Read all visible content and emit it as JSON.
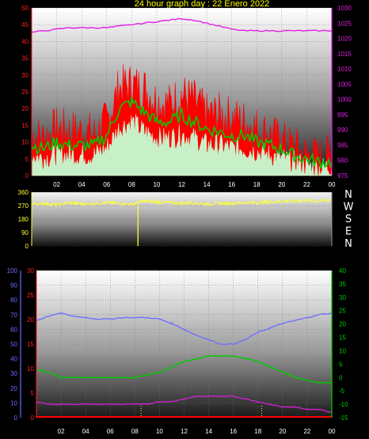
{
  "title": "24 hour graph day : 22 Enero 2022",
  "colors": {
    "background": "#000000",
    "wind_gust": "#ff0000",
    "wind_avg": "#00cc00",
    "wind_min": "#c8f0c8",
    "pressure": "#e020e0",
    "direction": "#ffff33",
    "temperature": "#00cc00",
    "humidity": "#7070ff",
    "dewpoint": "#cc22cc",
    "rain": "#ff0000",
    "left_axis_red": "#ff2020",
    "left_axis_blue": "#6a6aff",
    "time_ticks": "#ffff33"
  },
  "chart_data": [
    {
      "type": "line",
      "name": "wind-pressure",
      "x_ticks": [
        "02",
        "04",
        "06",
        "08",
        "10",
        "12",
        "14",
        "16",
        "18",
        "20",
        "22",
        "00"
      ],
      "y_left_ticks": [
        "0",
        "5",
        "10",
        "15",
        "20",
        "25",
        "30",
        "35",
        "40",
        "45",
        "50"
      ],
      "ylim_left": [
        0,
        50
      ],
      "y_right_ticks": [
        "975",
        "980",
        "985",
        "990",
        "995",
        "1000",
        "1005",
        "1010",
        "1015",
        "1020",
        "1025",
        "1030"
      ],
      "ylim_right": [
        975,
        1030
      ],
      "x_hours": [
        0,
        1,
        2,
        3,
        4,
        5,
        6,
        7,
        8,
        9,
        10,
        11,
        12,
        13,
        14,
        15,
        16,
        17,
        18,
        19,
        20,
        21,
        22,
        23,
        24
      ],
      "series": [
        {
          "key": "gust",
          "axis": "left",
          "values": [
            12,
            11,
            14,
            13,
            13,
            12,
            16,
            26,
            27,
            26,
            22,
            21,
            24,
            22,
            18,
            18,
            17,
            16,
            14,
            12,
            10,
            8,
            6,
            5,
            6
          ]
        },
        {
          "key": "avg",
          "axis": "left",
          "values": [
            9,
            8,
            10,
            9,
            9,
            9,
            12,
            20,
            22,
            19,
            16,
            16,
            18,
            16,
            14,
            13,
            12,
            12,
            10,
            9,
            8,
            6,
            5,
            4,
            4
          ]
        },
        {
          "key": "min",
          "axis": "left",
          "values": [
            6,
            5,
            6,
            6,
            6,
            6,
            8,
            14,
            16,
            13,
            11,
            11,
            12,
            11,
            9,
            9,
            8,
            8,
            7,
            6,
            5,
            4,
            3,
            2,
            3
          ]
        },
        {
          "key": "pressure",
          "axis": "right",
          "values": [
            1022,
            1022.5,
            1023,
            1023.5,
            1023.5,
            1023.5,
            1023.5,
            1024,
            1024.5,
            1025,
            1025.5,
            1026,
            1026.5,
            1026,
            1025,
            1024,
            1023,
            1022.5,
            1022.5,
            1022.5,
            1022.5,
            1022.5,
            1022.5,
            1022.5,
            1022.5
          ]
        }
      ]
    },
    {
      "type": "line",
      "name": "wind-direction",
      "x_hours": [
        0,
        1,
        2,
        3,
        4,
        5,
        6,
        7,
        8,
        8.5,
        9,
        10,
        11,
        12,
        13,
        14,
        15,
        16,
        17,
        18,
        19,
        20,
        21,
        22,
        23,
        24
      ],
      "y_ticks": [
        "0",
        "90",
        "180",
        "270",
        "360"
      ],
      "ylim": [
        0,
        360
      ],
      "compass_labels": [
        "N",
        "W",
        "S",
        "E",
        "N"
      ],
      "series": [
        {
          "key": "direction",
          "values": [
            280,
            285,
            275,
            290,
            280,
            285,
            290,
            285,
            280,
            290,
            300,
            295,
            290,
            285,
            290,
            280,
            285,
            285,
            290,
            290,
            295,
            300,
            300,
            305,
            300,
            310
          ]
        }
      ]
    },
    {
      "type": "line",
      "name": "temp-humidity",
      "x_ticks": [
        "02",
        "04",
        "06",
        "08",
        "10",
        "12",
        "14",
        "16",
        "18",
        "20",
        "22",
        "00"
      ],
      "y_left_outer_ticks": [
        "0",
        "10",
        "20",
        "30",
        "40",
        "50",
        "60",
        "70",
        "80",
        "90",
        "100"
      ],
      "ylim_left_outer": [
        0,
        100
      ],
      "y_left_inner_ticks": [
        "0",
        "5",
        "10",
        "15",
        "20",
        "25",
        "30"
      ],
      "ylim_left_inner": [
        0,
        30
      ],
      "y_right_ticks": [
        "-15",
        "-10",
        "-5",
        "0",
        "5",
        "10",
        "15",
        "20",
        "25",
        "30",
        "35",
        "40"
      ],
      "ylim_right": [
        -15,
        40
      ],
      "x_hours": [
        0,
        1,
        2,
        3,
        4,
        5,
        6,
        7,
        8,
        9,
        10,
        11,
        12,
        13,
        14,
        15,
        16,
        17,
        18,
        19,
        20,
        21,
        22,
        23,
        24
      ],
      "series": [
        {
          "key": "humidity",
          "axis": "left_outer",
          "values": [
            66,
            69,
            71,
            69,
            68,
            67,
            67,
            68,
            68,
            68,
            67,
            64,
            60,
            56,
            53,
            50,
            50,
            53,
            58,
            61,
            64,
            66,
            68,
            70,
            71
          ]
        },
        {
          "key": "temperature",
          "axis": "right",
          "values": [
            3,
            2,
            0,
            0,
            0,
            0,
            0,
            0,
            0,
            1,
            2,
            4,
            6,
            7,
            8,
            8,
            8,
            7,
            6,
            4,
            2,
            0,
            -1,
            -2,
            -2
          ]
        },
        {
          "key": "dewpoint",
          "axis": "right",
          "values": [
            -9,
            -10,
            -10,
            -10,
            -10,
            -10,
            -10,
            -10,
            -10,
            -10,
            -9,
            -9,
            -8,
            -7,
            -7,
            -7,
            -7,
            -8,
            -9,
            -10,
            -11,
            -11,
            -12,
            -12,
            -13
          ]
        },
        {
          "key": "rain",
          "axis": "left_inner",
          "values": [
            0,
            0,
            0,
            0,
            0,
            0,
            0,
            0,
            0,
            0,
            0,
            0,
            0,
            0,
            0,
            0,
            0,
            0,
            0,
            0,
            0,
            0,
            0,
            0,
            0
          ]
        }
      ]
    }
  ]
}
